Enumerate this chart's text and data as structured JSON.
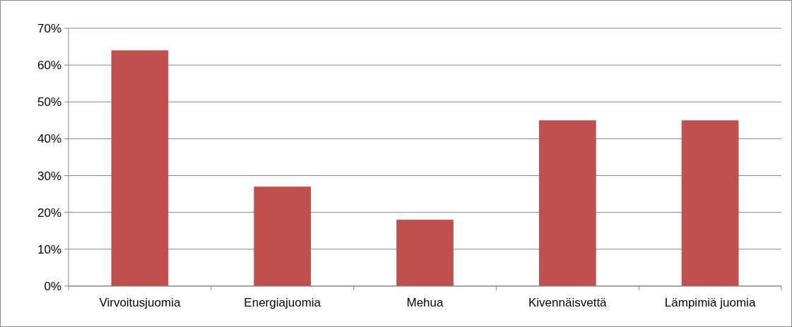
{
  "chart_data": {
    "type": "bar",
    "categories": [
      "Virvoitusjuomia",
      "Energiajuomia",
      "Mehua",
      "Kivennäisvettä",
      "Lämpimiä juomia"
    ],
    "values": [
      64,
      27,
      18,
      45,
      45
    ],
    "color": "#c0504d",
    "ylim": [
      0,
      70
    ],
    "yticks": [
      {
        "value": 0,
        "label": "0%"
      },
      {
        "value": 10,
        "label": "10%"
      },
      {
        "value": 20,
        "label": "20%"
      },
      {
        "value": 30,
        "label": "30%"
      },
      {
        "value": 40,
        "label": "40%"
      },
      {
        "value": 50,
        "label": "50%"
      },
      {
        "value": 60,
        "label": "60%"
      },
      {
        "value": 70,
        "label": "70%"
      }
    ],
    "grid": "y"
  }
}
